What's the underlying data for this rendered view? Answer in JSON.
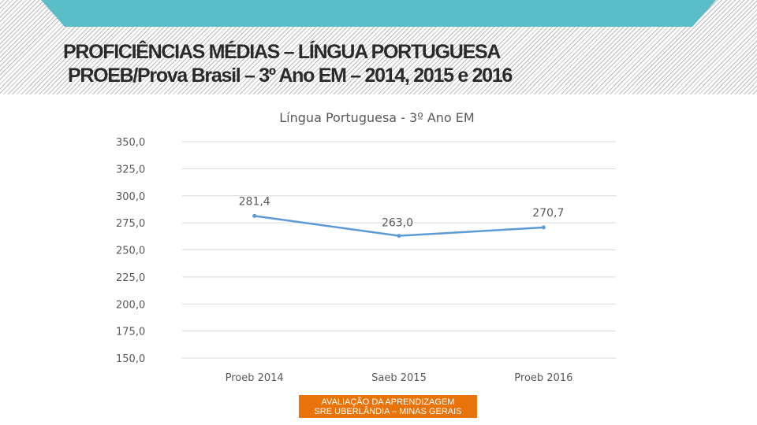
{
  "header": {
    "line1": "PROFICIÊNCIAS MÉDIAS – LÍNGUA PORTUGUESA",
    "line2": "PROEB/Prova Brasil – 3º Ano EM – 2014, 2015 e 2016"
  },
  "colors": {
    "banner": "#5bbdc8",
    "series": "#5b9bd5",
    "footer": "#e8730a",
    "grid": "#d9d9d9",
    "text": "#595959"
  },
  "chart_data": {
    "type": "line",
    "title": "Língua Portuguesa - 3º Ano EM",
    "categories": [
      "Proeb 2014",
      "Saeb 2015",
      "Proeb 2016"
    ],
    "values": [
      281.4,
      263.0,
      270.7
    ],
    "value_labels": [
      "281,4",
      "263,0",
      "270,7"
    ],
    "ylim": [
      150,
      350
    ],
    "yticks": [
      "150,0",
      "175,0",
      "200,0",
      "225,0",
      "250,0",
      "275,0",
      "300,0",
      "325,0",
      "350,0"
    ],
    "grid": true,
    "xlabel": "",
    "ylabel": ""
  },
  "footer": {
    "line1": "AVALIAÇÃO DA APRENDIZAGEM",
    "line2": "SRE UBERLÂNDIA – MINAS GERAIS"
  }
}
